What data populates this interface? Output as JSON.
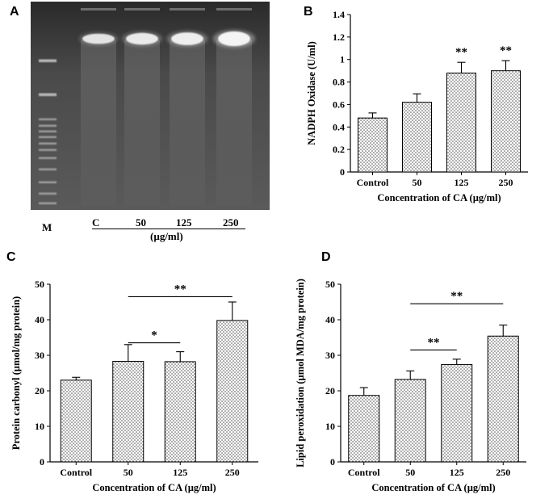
{
  "panel_letters": [
    "A",
    "B",
    "C",
    "D"
  ],
  "gel": {
    "marker_label": "M",
    "lane_labels": [
      "C",
      "50",
      "125",
      "250"
    ],
    "unit_label": "(µg/ml)",
    "band_intensity": [
      0.55,
      0.7,
      0.8,
      1.0
    ]
  },
  "colors": {
    "bar_fill": "#ffffff",
    "bar_dot": "#444444",
    "axis": "#000000",
    "gel_bg": "#3a3a3a",
    "gel_band": "#f4f4f4"
  },
  "chart_data": [
    {
      "panel": "B",
      "type": "bar",
      "categories": [
        "Control",
        "50",
        "125",
        "250"
      ],
      "values": [
        0.48,
        0.62,
        0.88,
        0.9
      ],
      "errors": [
        0.045,
        0.075,
        0.095,
        0.09
      ],
      "ylim": [
        0,
        1.4
      ],
      "yticks": [
        "0",
        "0.2",
        "0.4",
        "0.6",
        "0.8",
        "1",
        "1.2",
        "1.4"
      ],
      "ylabel": "NADPH Oxidase (U/ml)",
      "xlabel": "Concentration of CA (µg/ml)",
      "significance": [
        {
          "category": "125",
          "label": "**"
        },
        {
          "category": "250",
          "label": "**"
        }
      ]
    },
    {
      "panel": "C",
      "type": "bar",
      "categories": [
        "Control",
        "50",
        "125",
        "250"
      ],
      "values": [
        23,
        28.3,
        28.2,
        39.8
      ],
      "errors": [
        0.8,
        4.7,
        2.8,
        5.2
      ],
      "ylim": [
        0,
        50
      ],
      "yticks": [
        "0",
        "10",
        "20",
        "30",
        "40",
        "50"
      ],
      "ylabel": "Protein carbonyl (µmol/mg protein)",
      "xlabel": "Concentration of CA (µg/ml)",
      "brackets": [
        {
          "from": "50",
          "to": "125",
          "y": 33.5,
          "label": "*"
        },
        {
          "from": "50",
          "to": "250",
          "y": 46.5,
          "label": "**"
        }
      ]
    },
    {
      "panel": "D",
      "type": "bar",
      "categories": [
        "Control",
        "50",
        "125",
        "250"
      ],
      "values": [
        18.7,
        23.2,
        27.4,
        35.4
      ],
      "errors": [
        2.2,
        2.4,
        1.5,
        3.1
      ],
      "ylim": [
        0,
        50
      ],
      "yticks": [
        "0",
        "10",
        "20",
        "30",
        "40",
        "50"
      ],
      "ylabel": "Lipid peroxidation   (µmol MDA/mg protein)",
      "xlabel": "Concentration of CA (µg/ml)",
      "brackets": [
        {
          "from": "50",
          "to": "125",
          "y": 31.5,
          "label": "**"
        },
        {
          "from": "50",
          "to": "250",
          "y": 44.5,
          "label": "**"
        }
      ]
    }
  ]
}
